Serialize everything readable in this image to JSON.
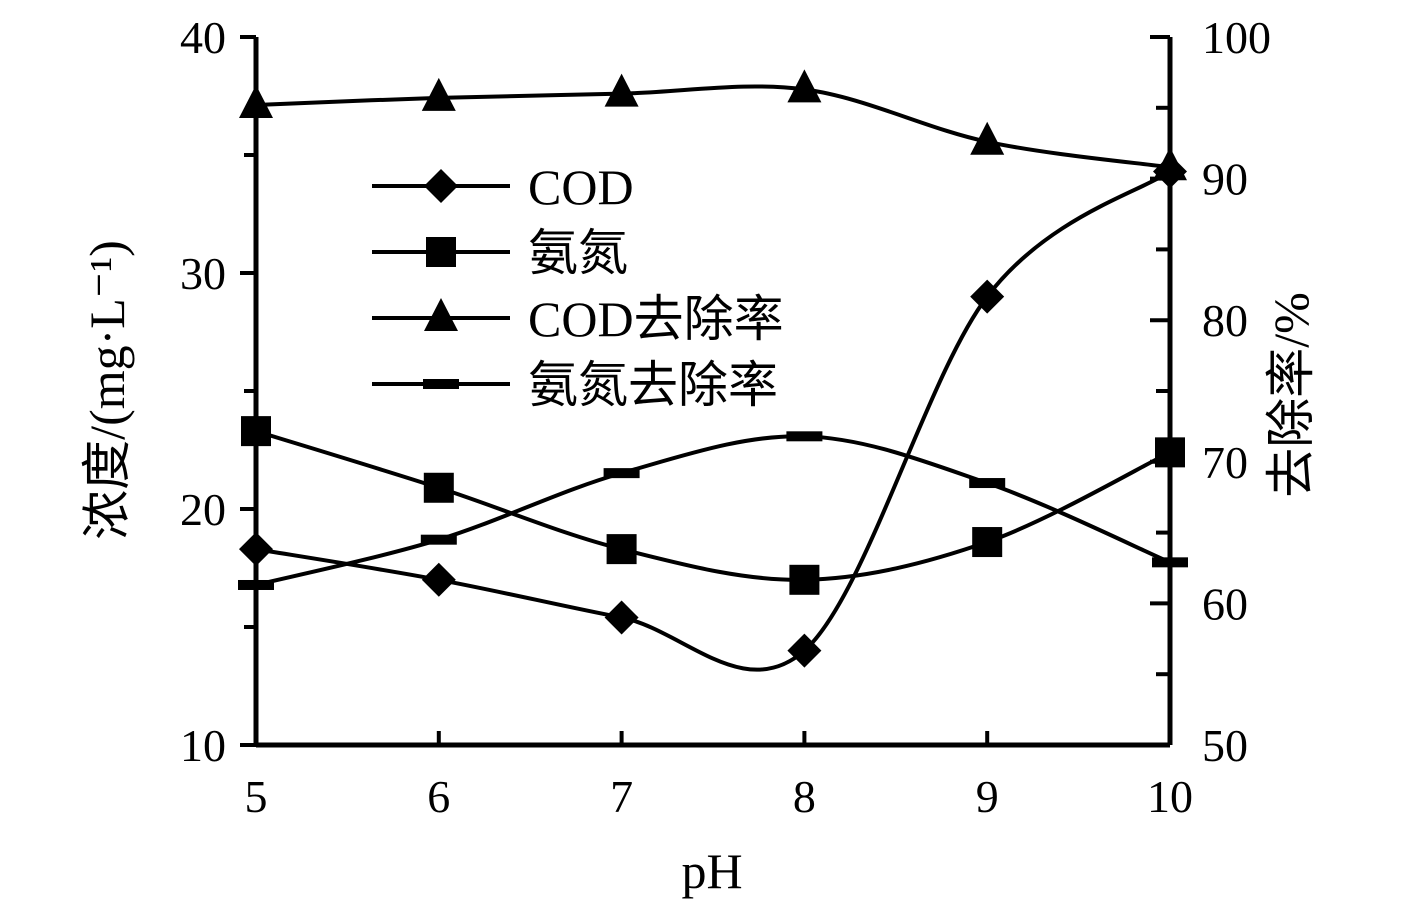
{
  "chart_data": {
    "type": "line",
    "x": [
      5,
      6,
      7,
      8,
      9,
      10
    ],
    "xlabel": "pH",
    "ylabel_left": "浓度/(mg·L⁻¹)",
    "ylabel_right": "去除率/%",
    "xlim": [
      5,
      10
    ],
    "ylim_left": [
      10,
      40
    ],
    "ylim_right": [
      50,
      100
    ],
    "x_ticks": [
      "5",
      "6",
      "7",
      "8",
      "9",
      "10"
    ],
    "y_left_ticks": [
      "10",
      "20",
      "30",
      "40"
    ],
    "y_right_ticks": [
      "50",
      "60",
      "70",
      "80",
      "90",
      "100"
    ],
    "legend_position": "upper-center",
    "series": [
      {
        "name": "COD",
        "axis": "left",
        "marker": "diamond",
        "values": [
          18.3,
          17.0,
          15.4,
          14.0,
          29.0,
          34.3
        ]
      },
      {
        "name": "氨氮",
        "axis": "left",
        "marker": "square",
        "values": [
          23.3,
          20.9,
          18.3,
          17.0,
          18.6,
          22.4
        ]
      },
      {
        "name": "COD去除率",
        "axis": "right",
        "marker": "triangle",
        "values": [
          95.2,
          95.7,
          96.0,
          96.3,
          92.6,
          90.8
        ]
      },
      {
        "name": "氨氮去除率",
        "axis": "right",
        "marker": "dash",
        "values": [
          61.3,
          64.5,
          69.2,
          71.8,
          68.5,
          62.9
        ]
      }
    ]
  }
}
